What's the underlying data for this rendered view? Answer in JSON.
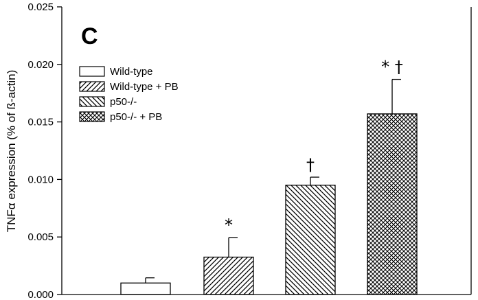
{
  "chart_data": {
    "type": "bar",
    "panel_label": "C",
    "ylabel": "TNFα expression (% of ß-actin)",
    "xlabel": "",
    "ylim": [
      0,
      0.025
    ],
    "yticks": [
      "0.000",
      "0.005",
      "0.010",
      "0.015",
      "0.020",
      "0.025"
    ],
    "legend_position": "top-left",
    "grid": false,
    "series": [
      {
        "name": "Wild-type",
        "value": 0.001,
        "error": 0.00045,
        "annotation": "",
        "pattern": "none"
      },
      {
        "name": "Wild-type + PB",
        "value": 0.00325,
        "error": 0.0017,
        "annotation": "*",
        "pattern": "diagonal-forward"
      },
      {
        "name": "p50-/-",
        "value": 0.0095,
        "error": 0.0007,
        "annotation": "†",
        "pattern": "diagonal-backward"
      },
      {
        "name": "p50-/- + PB",
        "value": 0.0157,
        "error": 0.003,
        "annotation": "* †",
        "pattern": "crosshatch"
      }
    ]
  }
}
